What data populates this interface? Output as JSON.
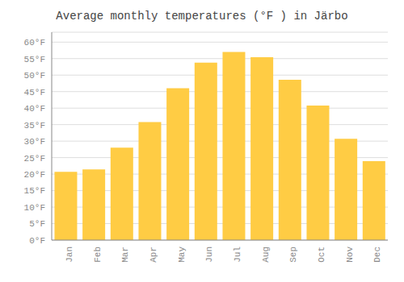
{
  "chart_data": {
    "type": "bar",
    "title": "Average monthly temperatures (°F ) in Järbo",
    "categories": [
      "Jan",
      "Feb",
      "Mar",
      "Apr",
      "May",
      "Jun",
      "Jul",
      "Aug",
      "Sep",
      "Oct",
      "Nov",
      "Dec"
    ],
    "values": [
      20.7,
      21.4,
      28.0,
      35.8,
      46.0,
      53.8,
      57.0,
      55.4,
      48.6,
      40.8,
      30.7,
      23.9
    ],
    "color": "#FFCC44",
    "ylim": [
      0,
      63
    ],
    "yticks": [
      {
        "value": 0,
        "label": "0°F"
      },
      {
        "value": 5,
        "label": "5°F"
      },
      {
        "value": 10,
        "label": "10°F"
      },
      {
        "value": 15,
        "label": "15°F"
      },
      {
        "value": 20,
        "label": "20°F"
      },
      {
        "value": 25,
        "label": "25°F"
      },
      {
        "value": 30,
        "label": "30°F"
      },
      {
        "value": 35,
        "label": "35°F"
      },
      {
        "value": 40,
        "label": "40°F"
      },
      {
        "value": 45,
        "label": "45°F"
      },
      {
        "value": 50,
        "label": "50°F"
      },
      {
        "value": 55,
        "label": "55°F"
      },
      {
        "value": 60,
        "label": "60°F"
      }
    ],
    "grid": true
  }
}
